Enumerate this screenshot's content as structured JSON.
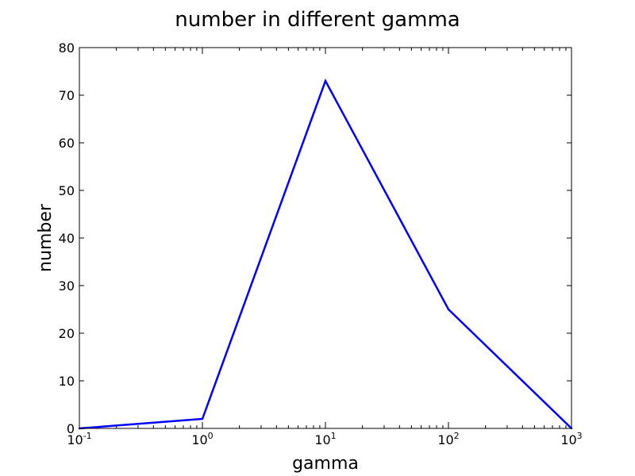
{
  "chart_data": {
    "type": "line",
    "title": "number in different gamma",
    "xlabel": "gamma",
    "ylabel": "number",
    "x_scale": "log",
    "xlim": [
      0.1,
      1000
    ],
    "ylim": [
      0,
      80
    ],
    "grid": false,
    "x": [
      0.1,
      1,
      10,
      100,
      1000
    ],
    "series": [
      {
        "values": [
          0,
          2,
          73,
          25,
          0
        ],
        "color": "#0000ff"
      }
    ],
    "x_ticks": [
      {
        "value": 0.1,
        "base": "10",
        "exp": "-1"
      },
      {
        "value": 1,
        "base": "10",
        "exp": "0"
      },
      {
        "value": 10,
        "base": "10",
        "exp": "1"
      },
      {
        "value": 100,
        "base": "10",
        "exp": "2"
      },
      {
        "value": 1000,
        "base": "10",
        "exp": "3"
      }
    ],
    "y_ticks": [
      0,
      10,
      20,
      30,
      40,
      50,
      60,
      70,
      80
    ]
  }
}
